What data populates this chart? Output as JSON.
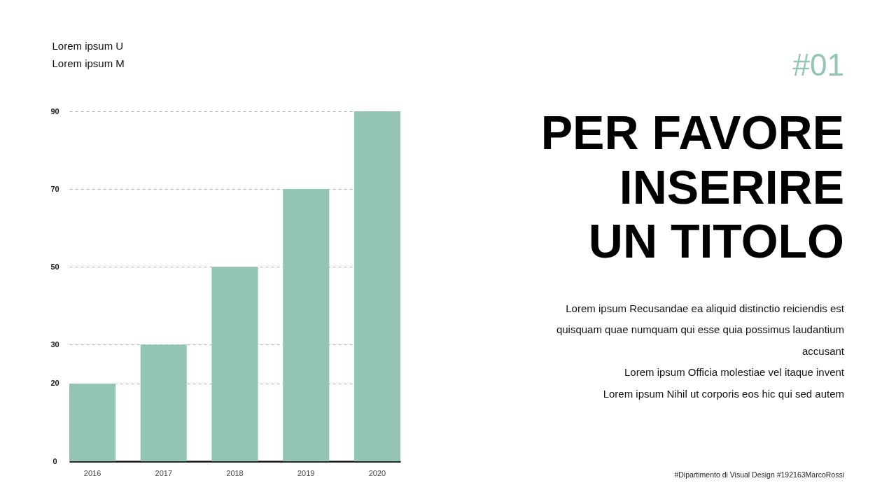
{
  "chart_data": {
    "type": "bar",
    "title": "PER FAVORE INSERIRE UN TITOLO",
    "ylabel": "Lorem ipsum U\nLorem ipsum M",
    "categories": [
      "2016",
      "2017",
      "2018",
      "2019",
      "2020"
    ],
    "values": [
      20,
      30,
      50,
      70,
      90
    ],
    "color": "#94c4b4",
    "ylim": [
      0,
      90
    ],
    "yticks": [
      0,
      20,
      30,
      50,
      70,
      90
    ],
    "grid": "y",
    "annotations": [
      "#01",
      "Lorem ipsum Recusandae ea aliquid distinctio reiciendis est quisquam quae numquam qui esse quia possimus laudantium accusant",
      "Lorem ipsum Officia molestiae vel itaque invent",
      "Lorem ipsum Nihil ut corporis eos hic qui sed autem",
      "#Dipartimento di Visual Design #192163MarcoRossi"
    ]
  }
}
